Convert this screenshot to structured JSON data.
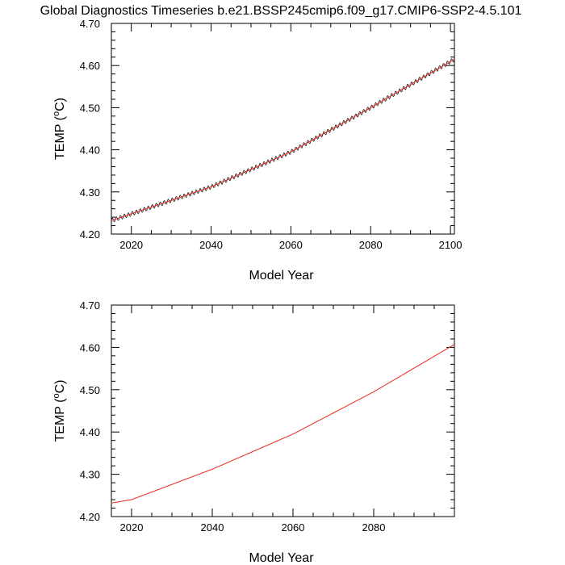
{
  "title": "Global Diagnostics Timeseries b.e21.BSSP245cmip6.f09_g17.CMIP6-SSP2-4.5.101",
  "colors": {
    "background": "#ffffff",
    "axis": "#000000",
    "monthly_line": "#1a1a1a",
    "annual_line": "#e8261e"
  },
  "chart_data": [
    {
      "type": "line",
      "xlabel": "Model Year",
      "ylabel_main": "TEMP (",
      "ylabel_sup": "o",
      "ylabel_end": "C)",
      "xlim": [
        2015,
        2101
      ],
      "ylim": [
        4.2,
        4.7
      ],
      "x_ticks": [
        2020,
        2040,
        2060,
        2080,
        2100
      ],
      "y_ticks": [
        "4.20",
        "4.30",
        "4.40",
        "4.50",
        "4.60",
        "4.70"
      ],
      "series": [
        {
          "style": "monthly",
          "color": "#1a1a1a",
          "trend_x": [
            2015,
            2040,
            2060,
            2080,
            2101
          ],
          "trend_y": [
            4.232,
            4.312,
            4.395,
            4.5,
            4.615
          ],
          "seasonal_amplitude": 0.005
        },
        {
          "style": "annual",
          "color": "#e8261e",
          "trend_x": [
            2015,
            2040,
            2060,
            2080,
            2101
          ],
          "trend_y": [
            4.232,
            4.312,
            4.395,
            4.5,
            4.615
          ]
        }
      ]
    },
    {
      "type": "line",
      "xlabel": "Model Year",
      "ylabel_main": "TEMP (",
      "ylabel_sup": "o",
      "ylabel_end": "C)",
      "xlim": [
        2015,
        2100
      ],
      "ylim": [
        4.2,
        4.7
      ],
      "x_ticks": [
        2020,
        2040,
        2060,
        2080
      ],
      "y_ticks": [
        "4.20",
        "4.30",
        "4.40",
        "4.50",
        "4.60",
        "4.70"
      ],
      "series": [
        {
          "style": "annual",
          "color": "#e8261e",
          "trend_x": [
            2015,
            2020,
            2040,
            2060,
            2080,
            2100
          ],
          "trend_y": [
            4.232,
            4.24,
            4.312,
            4.395,
            4.495,
            4.607
          ]
        }
      ]
    }
  ]
}
